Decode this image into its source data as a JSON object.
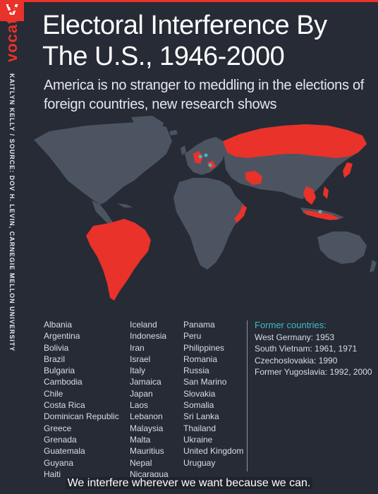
{
  "brand": {
    "logo": "V",
    "name": "vocativ",
    "red": "#e8322a"
  },
  "credit": "KAITLYN KELLY / SOURCE: DOV H. LEVIN, CARNEGIE MELLON UNIVERSITY",
  "title": "Electoral Interference By The U.S., 1946-2000",
  "subtitle": "America is no stranger to meddling in the elections of foreign countries, new research shows",
  "map": {
    "highlight_color": "#e8322a",
    "land_color": "#4d5461",
    "former_marker_color": "#41b9c9"
  },
  "countries": {
    "column1": [
      "Albania",
      "Argentina",
      "Bolivia",
      "Brazil",
      "Bulgaria",
      "Cambodia",
      "Chile",
      "Costa Rica",
      "Dominican Republic",
      "Greece",
      "Grenada",
      "Guatemala",
      "Guyana",
      "Haiti"
    ],
    "column2": [
      "Iceland",
      "Indonesia",
      "Iran",
      "Israel",
      "Italy",
      "Jamaica",
      "Japan",
      "Laos",
      "Lebanon",
      "Malaysia",
      "Malta",
      "Mauritius",
      "Nepal",
      "Nicaragua"
    ],
    "column3": [
      "Panama",
      "Peru",
      "Philippines",
      "Romania",
      "Russia",
      "San Marino",
      "Slovakia",
      "Somalia",
      "Sri Lanka",
      "Thailand",
      "Ukraine",
      "United Kingdom",
      "Uruguay"
    ]
  },
  "former": {
    "heading": "Former countries:",
    "items": [
      "West Germany: 1953",
      "South Vietnam: 1961, 1971",
      "Czechoslovakia: 1990",
      "Former Yugoslavia: 1992, 2000"
    ]
  },
  "caption": "We interfere wherever we want because we can."
}
